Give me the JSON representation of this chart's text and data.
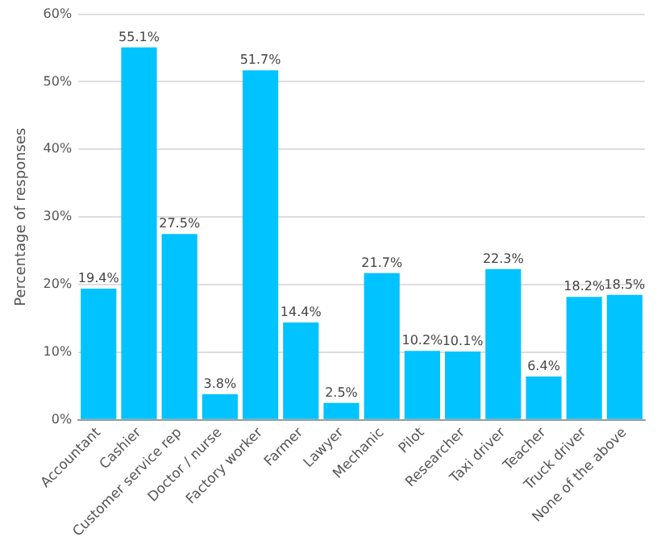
{
  "chart_data": {
    "type": "bar",
    "ylabel": "Percentage of responses",
    "categories": [
      "Accountant",
      "Cashier",
      "Customer service rep",
      "Doctor / nurse",
      "Factory worker",
      "Farmer",
      "Lawyer",
      "Mechanic",
      "Pilot",
      "Researcher",
      "Taxi driver",
      "Teacher",
      "Truck driver",
      "None of the above"
    ],
    "values": [
      19.4,
      55.1,
      27.5,
      3.8,
      51.7,
      14.4,
      2.5,
      21.7,
      10.2,
      10.1,
      22.3,
      6.4,
      18.2,
      18.5
    ],
    "value_labels": [
      "19.4%",
      "55.1%",
      "27.5%",
      "3.8%",
      "51.7%",
      "14.4%",
      "2.5%",
      "21.7%",
      "10.2%",
      "10.1%",
      "22.3%",
      "6.4%",
      "18.2%",
      "18.5%"
    ],
    "color": "#00c3ff",
    "ylim": [
      0,
      60
    ],
    "yticks": [
      {
        "value": 0,
        "label": "0%"
      },
      {
        "value": 10,
        "label": "10%"
      },
      {
        "value": 20,
        "label": "20%"
      },
      {
        "value": 30,
        "label": "30%"
      },
      {
        "value": 40,
        "label": "40%"
      },
      {
        "value": 50,
        "label": "50%"
      },
      {
        "value": 60,
        "label": "60%"
      }
    ],
    "grid": "y",
    "legend": false
  }
}
